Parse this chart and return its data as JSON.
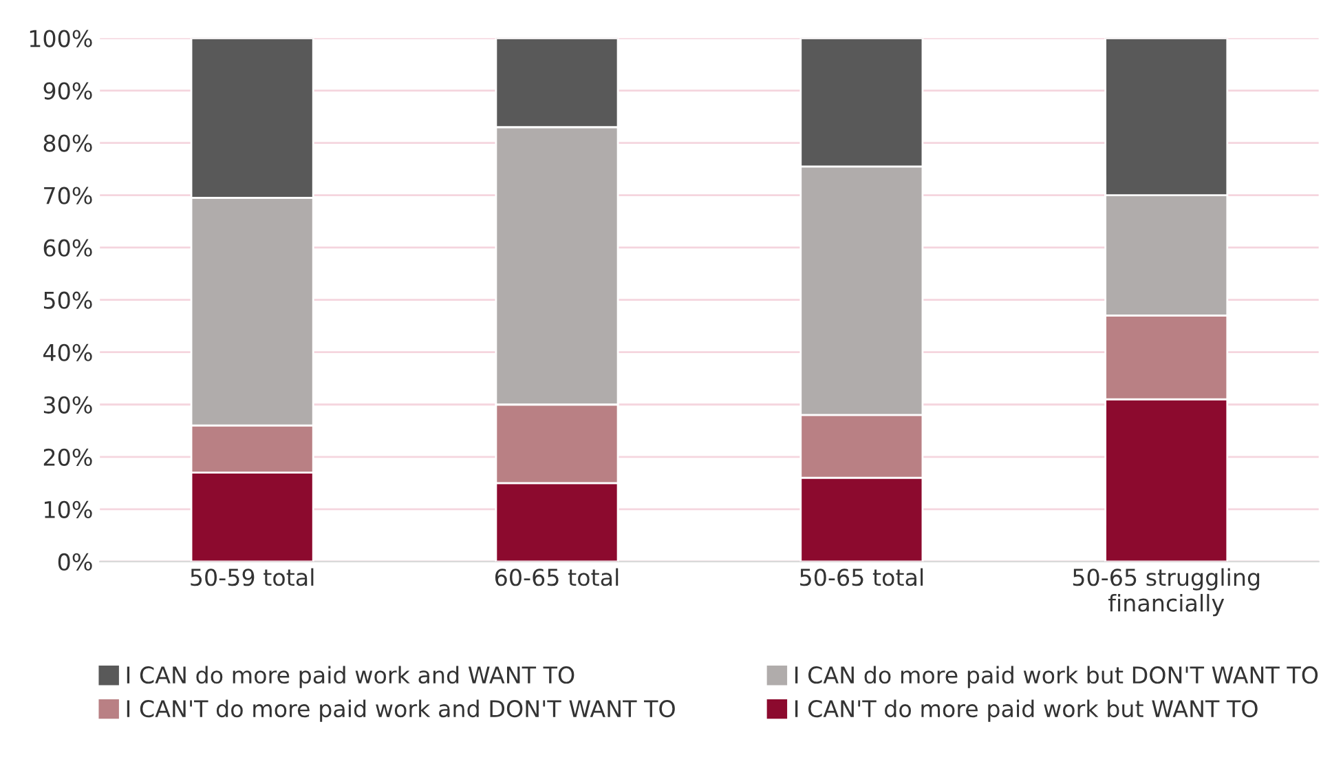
{
  "chart_data": {
    "type": "bar",
    "stacked": true,
    "categories": [
      "50-59 total",
      "60-65 total",
      "50-65 total",
      "50-65 struggling\nfinancially"
    ],
    "series": [
      {
        "name": "I CAN'T do more paid work but WANT TO",
        "color": "#8c0a2e",
        "values": [
          17,
          15,
          16,
          31
        ]
      },
      {
        "name": "I CAN'T do more paid work and DON'T WANT TO",
        "color": "#b98084",
        "values": [
          9,
          15,
          12,
          16
        ]
      },
      {
        "name": "I CAN do more paid work but DON'T WANT TO",
        "color": "#b0acab",
        "values": [
          43.5,
          53,
          47.5,
          23
        ]
      },
      {
        "name": "I CAN do more paid work and WANT TO",
        "color": "#595959",
        "values": [
          30.5,
          17,
          24.5,
          30
        ]
      }
    ],
    "ylim": [
      0,
      100
    ],
    "yticks": [
      {
        "value": 0,
        "label": "0%"
      },
      {
        "value": 10,
        "label": "10%"
      },
      {
        "value": 20,
        "label": "20%"
      },
      {
        "value": 30,
        "label": "30%"
      },
      {
        "value": 40,
        "label": "40%"
      },
      {
        "value": 50,
        "label": "50%"
      },
      {
        "value": 60,
        "label": "60%"
      },
      {
        "value": 70,
        "label": "70%"
      },
      {
        "value": 80,
        "label": "80%"
      },
      {
        "value": 90,
        "label": "90%"
      },
      {
        "value": 100,
        "label": "100%"
      }
    ],
    "grid": "y",
    "legend": "bottom"
  }
}
